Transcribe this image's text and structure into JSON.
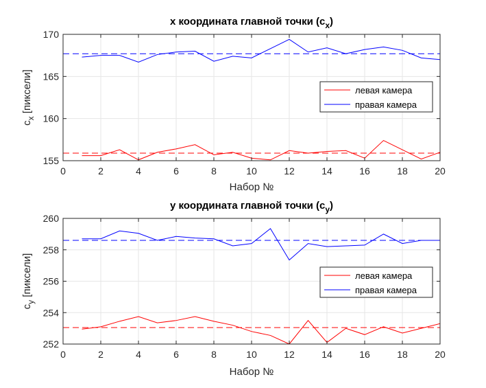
{
  "chart_data": [
    {
      "type": "line",
      "title": "x координата главной точки (c",
      "title_sub": "x",
      "title_close": ")",
      "xlabel": "Набор №",
      "ylabel": "c",
      "ylabel_sub": "x",
      "ylabel_rest": " [пиксели]",
      "xlim": [
        0,
        20
      ],
      "ylim": [
        155,
        170
      ],
      "xticks": [
        0,
        2,
        4,
        6,
        8,
        10,
        12,
        14,
        16,
        18,
        20
      ],
      "yticks": [
        155,
        160,
        165,
        170
      ],
      "grid": true,
      "legend_position": "right",
      "x": [
        1,
        2,
        3,
        4,
        5,
        6,
        7,
        8,
        9,
        10,
        11,
        12,
        13,
        14,
        15,
        16,
        17,
        18,
        19,
        20
      ],
      "series": [
        {
          "name": "левая камера",
          "color": "#ff0000",
          "values": [
            155.6,
            155.6,
            156.3,
            155.1,
            156.0,
            156.4,
            156.9,
            155.7,
            156.0,
            155.3,
            155.1,
            156.2,
            155.9,
            156.1,
            156.2,
            155.3,
            157.4,
            156.3,
            155.2,
            156.0
          ],
          "mean": 155.9
        },
        {
          "name": "правая камера",
          "color": "#0000ff",
          "values": [
            167.3,
            167.5,
            167.5,
            166.7,
            167.6,
            167.9,
            168.0,
            166.8,
            167.4,
            167.2,
            168.3,
            169.4,
            167.9,
            168.4,
            167.7,
            168.2,
            168.5,
            168.1,
            167.2,
            167.0
          ],
          "mean": 167.7
        }
      ]
    },
    {
      "type": "line",
      "title": "y координата главной точки (c",
      "title_sub": "y",
      "title_close": ")",
      "xlabel": "Набор №",
      "ylabel": "c",
      "ylabel_sub": "y",
      "ylabel_rest": " [пиксели]",
      "xlim": [
        0,
        20
      ],
      "ylim": [
        252,
        260
      ],
      "xticks": [
        0,
        2,
        4,
        6,
        8,
        10,
        12,
        14,
        16,
        18,
        20
      ],
      "yticks": [
        252,
        254,
        256,
        258,
        260
      ],
      "grid": true,
      "legend_position": "right",
      "x": [
        1,
        2,
        3,
        4,
        5,
        6,
        7,
        8,
        9,
        10,
        11,
        12,
        13,
        14,
        15,
        16,
        17,
        18,
        19,
        20
      ],
      "series": [
        {
          "name": "левая камера",
          "color": "#ff0000",
          "values": [
            252.95,
            253.1,
            253.45,
            253.75,
            253.35,
            253.5,
            253.75,
            253.45,
            253.2,
            252.8,
            252.55,
            252.0,
            253.5,
            252.1,
            253.0,
            252.6,
            253.1,
            252.7,
            253.0,
            253.3
          ],
          "mean": 253.05
        },
        {
          "name": "правая камера",
          "color": "#0000ff",
          "values": [
            258.7,
            258.7,
            259.2,
            259.05,
            258.6,
            258.85,
            258.75,
            258.7,
            258.25,
            258.4,
            259.35,
            257.35,
            258.4,
            258.2,
            258.25,
            258.3,
            259.0,
            258.4,
            258.6,
            258.6
          ],
          "mean": 258.6
        }
      ]
    }
  ]
}
